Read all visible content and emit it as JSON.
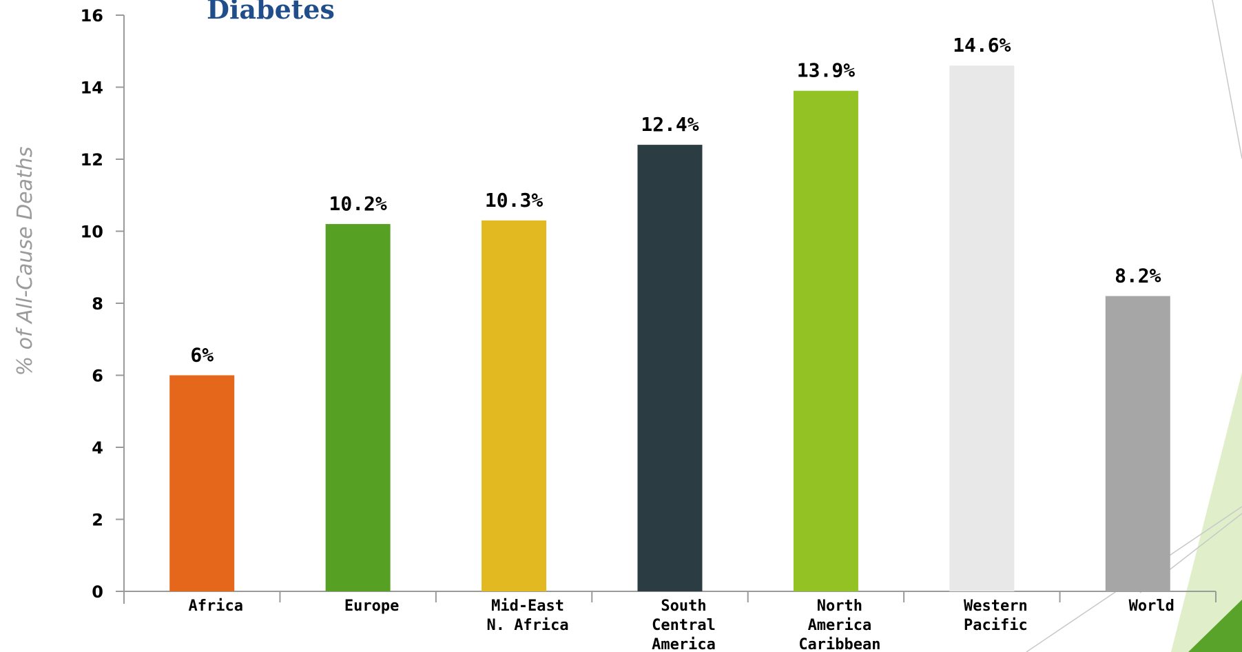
{
  "chart_data": {
    "type": "bar",
    "title": "Diabetes",
    "ylabel": "% of All-Cause Deaths",
    "xlabel": "",
    "ylim": [
      0,
      16
    ],
    "yticks": [
      0,
      2,
      4,
      6,
      8,
      10,
      12,
      14,
      16
    ],
    "grid": false,
    "categories": [
      [
        "Africa"
      ],
      [
        "Europe"
      ],
      [
        "Mid-East",
        "N. Africa"
      ],
      [
        "South",
        "Central",
        "America"
      ],
      [
        "North",
        "America",
        "Caribbean"
      ],
      [
        "Western",
        "Pacific"
      ],
      [
        "World"
      ]
    ],
    "values": [
      6,
      10.2,
      10.3,
      12.4,
      13.9,
      14.6,
      8.2
    ],
    "data_labels": [
      "6%",
      "10.2%",
      "10.3%",
      "12.4%",
      "13.9%",
      "14.6%",
      "8.2%"
    ],
    "colors": [
      "#e5671b",
      "#56a124",
      "#e3b921",
      "#2b3c43",
      "#93c225",
      "#e8e8e8",
      "#a6a6a6"
    ]
  },
  "decoration": {
    "accent_light": "#d6e9b8",
    "accent_dark": "#5aa32a",
    "line": "#c8c8c8"
  }
}
